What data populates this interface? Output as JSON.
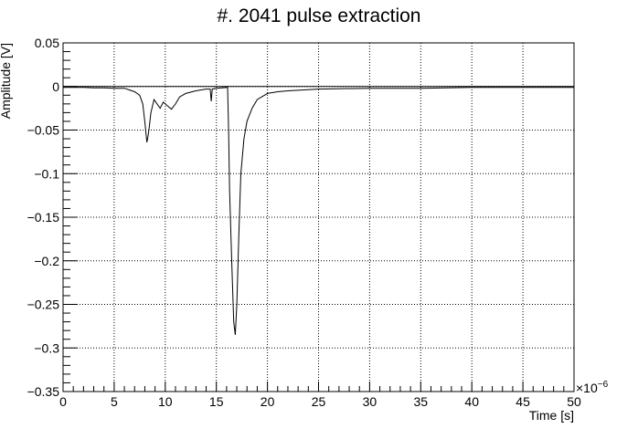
{
  "chart_data": {
    "type": "line",
    "title": "#. 2041 pulse extraction",
    "xlabel": "Time [s]",
    "ylabel": "Amplitude [V]",
    "x_multiplier_label": "×10",
    "x_multiplier_exponent": "−6",
    "xlim": [
      0,
      50
    ],
    "ylim": [
      -0.35,
      0.05
    ],
    "x_ticks": [
      "0",
      "5",
      "10",
      "15",
      "20",
      "25",
      "30",
      "35",
      "40",
      "45",
      "50"
    ],
    "y_ticks": [
      "0.05",
      "0",
      "−0.05",
      "−0.1",
      "−0.15",
      "−0.2",
      "−0.25",
      "−0.3",
      "−0.35"
    ],
    "grid": true,
    "line_color": "#000000",
    "baseline": 0,
    "series": [
      {
        "x": [
          0,
          1,
          2,
          3,
          4,
          5,
          6,
          6.5,
          7,
          7.5,
          7.8,
          8.0,
          8.2,
          8.3,
          8.4,
          8.6,
          8.9,
          9.2,
          9.5,
          9.8,
          10.2,
          10.6,
          11.0,
          11.4,
          12,
          13,
          14,
          14.4,
          14.5,
          14.6,
          15,
          16.1,
          16.2,
          16.3,
          16.5,
          16.7,
          16.85,
          17.0,
          17.2,
          17.4,
          17.7,
          18.0,
          18.5,
          19,
          20,
          21,
          22,
          25,
          30,
          35,
          40,
          45,
          50
        ],
        "y": [
          -0.001,
          -0.001,
          -0.001,
          -0.0015,
          -0.0015,
          -0.002,
          -0.002,
          -0.004,
          -0.006,
          -0.01,
          -0.02,
          -0.04,
          -0.064,
          -0.058,
          -0.05,
          -0.03,
          -0.015,
          -0.02,
          -0.025,
          -0.018,
          -0.022,
          -0.026,
          -0.02,
          -0.012,
          -0.008,
          -0.005,
          -0.003,
          -0.003,
          -0.017,
          -0.003,
          -0.002,
          -0.001,
          -0.05,
          -0.12,
          -0.2,
          -0.27,
          -0.285,
          -0.25,
          -0.17,
          -0.1,
          -0.06,
          -0.04,
          -0.025,
          -0.015,
          -0.008,
          -0.006,
          -0.005,
          -0.003,
          -0.002,
          -0.002,
          -0.001,
          -0.001,
          -0.001
        ]
      }
    ]
  }
}
